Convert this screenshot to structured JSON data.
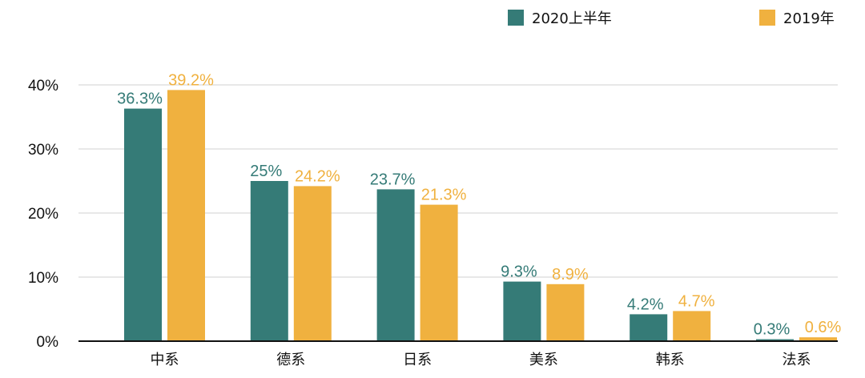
{
  "chart_data": {
    "type": "bar",
    "categories": [
      "中系",
      "德系",
      "日系",
      "美系",
      "韩系",
      "法系"
    ],
    "series": [
      {
        "name": "2020上半年",
        "values": [
          36.3,
          25,
          23.7,
          9.3,
          4.2,
          0.3
        ],
        "labels": [
          "36.3%",
          "25%",
          "23.7%",
          "9.3%",
          "4.2%",
          "0.3%"
        ],
        "color": "#357b77"
      },
      {
        "name": "2019年",
        "values": [
          39.2,
          24.2,
          21.3,
          8.9,
          4.7,
          0.6
        ],
        "labels": [
          "39.2%",
          "24.2%",
          "21.3%",
          "8.9%",
          "4.7%",
          "0.6%"
        ],
        "color": "#f0b13f"
      }
    ],
    "yticks": [
      "0%",
      "10%",
      "20%",
      "30%",
      "40%"
    ],
    "ylim": [
      0,
      40
    ],
    "grid": true,
    "legend_position": "top-right"
  }
}
